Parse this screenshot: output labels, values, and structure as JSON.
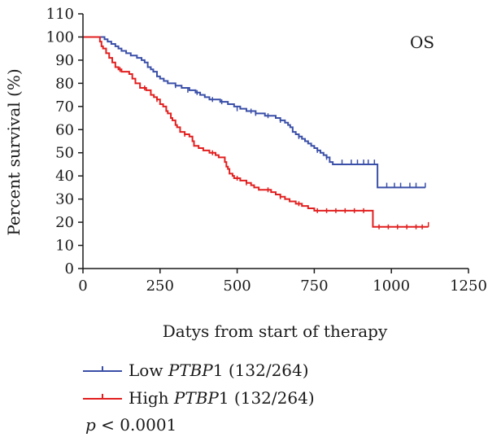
{
  "chart_data": {
    "type": "line",
    "subtype": "kaplan-meier",
    "annotation": "OS",
    "xlabel": "Datys from start of therapy",
    "ylabel": "Percent survival (%)",
    "xlim": [
      0,
      1250
    ],
    "ylim": [
      0,
      110
    ],
    "x_ticks": [
      0,
      250,
      500,
      750,
      1000,
      1250
    ],
    "y_ticks": [
      0,
      10,
      20,
      30,
      40,
      50,
      60,
      70,
      80,
      90,
      100,
      110
    ],
    "grid": false,
    "legend_position": "bottom-left",
    "p_value": {
      "prefix": "p",
      "text": " < 0.0001"
    },
    "series": [
      {
        "name": "Low PTBP1 (132/264)",
        "legend_prefix": "Low ",
        "legend_gene": "PTBP",
        "legend_suffix": "1 (132/264)",
        "color": "#3a4fa8",
        "steps": [
          [
            0,
            100
          ],
          [
            62,
            100
          ],
          [
            70,
            99
          ],
          [
            80,
            98
          ],
          [
            92,
            97
          ],
          [
            105,
            96
          ],
          [
            115,
            95
          ],
          [
            125,
            94
          ],
          [
            140,
            93
          ],
          [
            155,
            92
          ],
          [
            175,
            91
          ],
          [
            190,
            90
          ],
          [
            200,
            89
          ],
          [
            210,
            87
          ],
          [
            220,
            86
          ],
          [
            228,
            85
          ],
          [
            240,
            83
          ],
          [
            250,
            82
          ],
          [
            262,
            81
          ],
          [
            275,
            80
          ],
          [
            300,
            79
          ],
          [
            320,
            78
          ],
          [
            345,
            77
          ],
          [
            365,
            76
          ],
          [
            380,
            75
          ],
          [
            395,
            74
          ],
          [
            410,
            73
          ],
          [
            445,
            72
          ],
          [
            470,
            71
          ],
          [
            490,
            70
          ],
          [
            510,
            69
          ],
          [
            530,
            68
          ],
          [
            560,
            67
          ],
          [
            590,
            66
          ],
          [
            625,
            65
          ],
          [
            640,
            64
          ],
          [
            655,
            63
          ],
          [
            665,
            62
          ],
          [
            672,
            61
          ],
          [
            680,
            59
          ],
          [
            690,
            58
          ],
          [
            700,
            57
          ],
          [
            710,
            56
          ],
          [
            720,
            55
          ],
          [
            730,
            54
          ],
          [
            740,
            53
          ],
          [
            750,
            52
          ],
          [
            760,
            51
          ],
          [
            770,
            50
          ],
          [
            780,
            49
          ],
          [
            790,
            48
          ],
          [
            800,
            46
          ],
          [
            810,
            45
          ],
          [
            955,
            45
          ],
          [
            955,
            35
          ],
          [
            1110,
            35
          ]
        ],
        "censors": [
          [
            300,
            79
          ],
          [
            340,
            77
          ],
          [
            370,
            76
          ],
          [
            420,
            73
          ],
          [
            450,
            72
          ],
          [
            500,
            69
          ],
          [
            545,
            68
          ],
          [
            560,
            67
          ],
          [
            600,
            66
          ],
          [
            640,
            64
          ],
          [
            700,
            57
          ],
          [
            760,
            51
          ],
          [
            790,
            48
          ],
          [
            840,
            46
          ],
          [
            870,
            46
          ],
          [
            890,
            46
          ],
          [
            910,
            46
          ],
          [
            925,
            46
          ],
          [
            945,
            46
          ],
          [
            985,
            36
          ],
          [
            1010,
            36
          ],
          [
            1030,
            36
          ],
          [
            1060,
            36
          ],
          [
            1080,
            36
          ],
          [
            1110,
            36
          ]
        ]
      },
      {
        "name": "High PTBP1 (132/264)",
        "legend_prefix": "High ",
        "legend_gene": "PTBP",
        "legend_suffix": "1 (132/264)",
        "color": "#e21f1f",
        "steps": [
          [
            0,
            100
          ],
          [
            52,
            100
          ],
          [
            55,
            98
          ],
          [
            60,
            96
          ],
          [
            65,
            95
          ],
          [
            75,
            93
          ],
          [
            85,
            91
          ],
          [
            95,
            89
          ],
          [
            105,
            87
          ],
          [
            115,
            86
          ],
          [
            125,
            85
          ],
          [
            150,
            84
          ],
          [
            160,
            82
          ],
          [
            170,
            80
          ],
          [
            185,
            78
          ],
          [
            205,
            77
          ],
          [
            220,
            75
          ],
          [
            230,
            74
          ],
          [
            240,
            73
          ],
          [
            250,
            71
          ],
          [
            260,
            70
          ],
          [
            270,
            68
          ],
          [
            275,
            67
          ],
          [
            285,
            65
          ],
          [
            290,
            64
          ],
          [
            300,
            62
          ],
          [
            305,
            61
          ],
          [
            315,
            59
          ],
          [
            330,
            58
          ],
          [
            345,
            57
          ],
          [
            355,
            55
          ],
          [
            360,
            53
          ],
          [
            375,
            52
          ],
          [
            390,
            51
          ],
          [
            410,
            50
          ],
          [
            430,
            49
          ],
          [
            440,
            48
          ],
          [
            460,
            46
          ],
          [
            465,
            44
          ],
          [
            470,
            43
          ],
          [
            475,
            41
          ],
          [
            485,
            40
          ],
          [
            490,
            39
          ],
          [
            510,
            38
          ],
          [
            530,
            37
          ],
          [
            545,
            36
          ],
          [
            555,
            35
          ],
          [
            570,
            34
          ],
          [
            600,
            34
          ],
          [
            610,
            33
          ],
          [
            625,
            32
          ],
          [
            640,
            31
          ],
          [
            655,
            30
          ],
          [
            670,
            29
          ],
          [
            690,
            28
          ],
          [
            710,
            27
          ],
          [
            730,
            26
          ],
          [
            750,
            25
          ],
          [
            940,
            25
          ],
          [
            940,
            18
          ],
          [
            1120,
            18
          ]
        ],
        "censors": [
          [
            120,
            86
          ],
          [
            200,
            78
          ],
          [
            240,
            73
          ],
          [
            330,
            58
          ],
          [
            420,
            50
          ],
          [
            500,
            39
          ],
          [
            530,
            37
          ],
          [
            600,
            34
          ],
          [
            640,
            31
          ],
          [
            700,
            28
          ],
          [
            760,
            25
          ],
          [
            790,
            25
          ],
          [
            820,
            25
          ],
          [
            850,
            25
          ],
          [
            880,
            25
          ],
          [
            910,
            25
          ],
          [
            960,
            18
          ],
          [
            990,
            18
          ],
          [
            1020,
            18
          ],
          [
            1050,
            18
          ],
          [
            1080,
            18
          ],
          [
            1100,
            18
          ],
          [
            1120,
            19
          ]
        ]
      }
    ]
  }
}
